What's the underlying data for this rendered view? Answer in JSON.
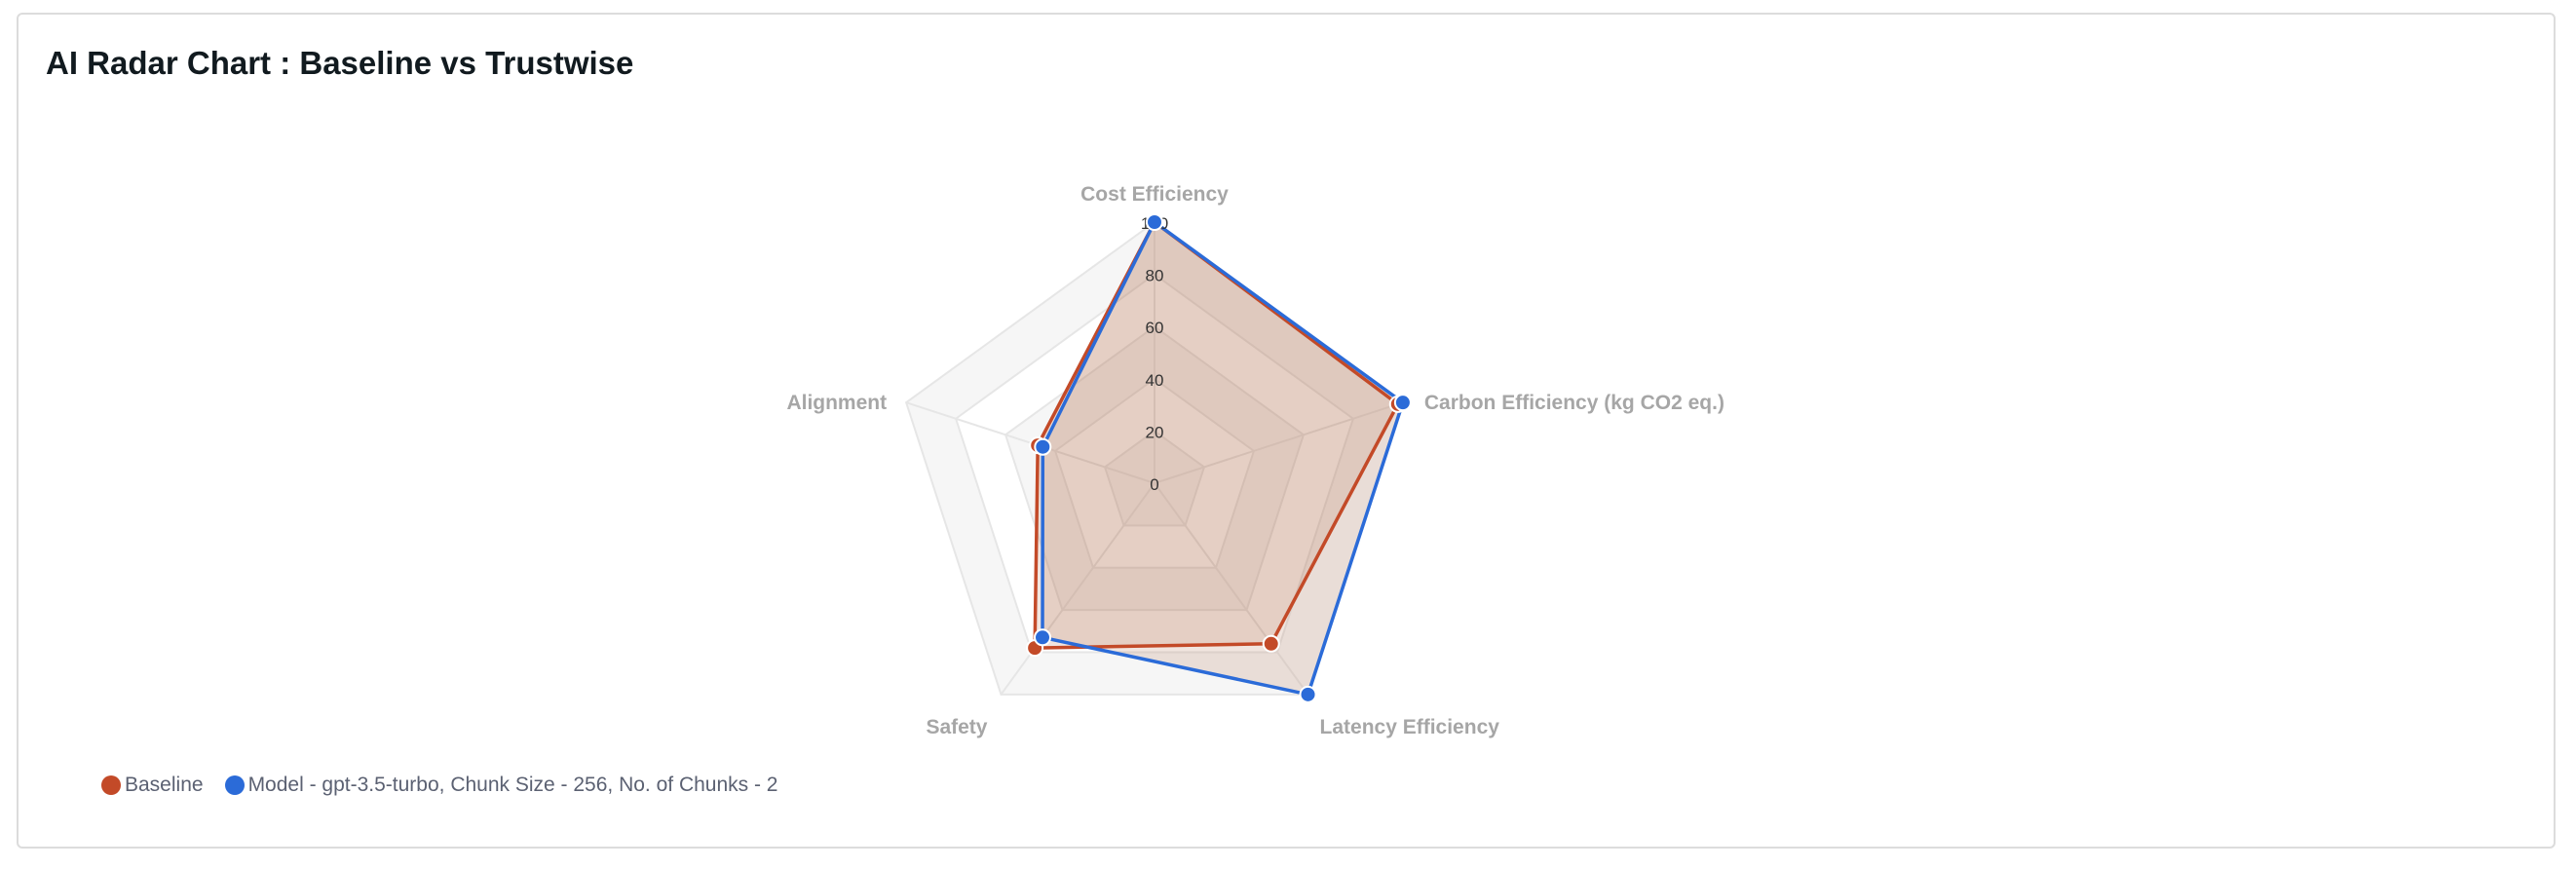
{
  "title": "AI Radar Chart : Baseline vs Trustwise",
  "chart_data": {
    "type": "radar",
    "title": "AI Radar Chart : Baseline vs Trustwise",
    "indicators": [
      "Cost Efficiency",
      "Carbon Efficiency (kg CO2 eq.)",
      "Latency Efficiency",
      "Safety",
      "Alignment"
    ],
    "max": 100,
    "ticks": [
      "0",
      "20",
      "40",
      "60",
      "80",
      "100"
    ],
    "series": [
      {
        "name": "Baseline",
        "color": "#c34a28",
        "values": [
          100,
          98,
          76,
          78,
          47
        ]
      },
      {
        "name": "Model - gpt-3.5-turbo, Chunk Size - 256, No. of Chunks - 2",
        "color": "#2b6bd8",
        "values": [
          100,
          100,
          100,
          73,
          45
        ]
      }
    ],
    "legend_position": "bottom-left"
  }
}
